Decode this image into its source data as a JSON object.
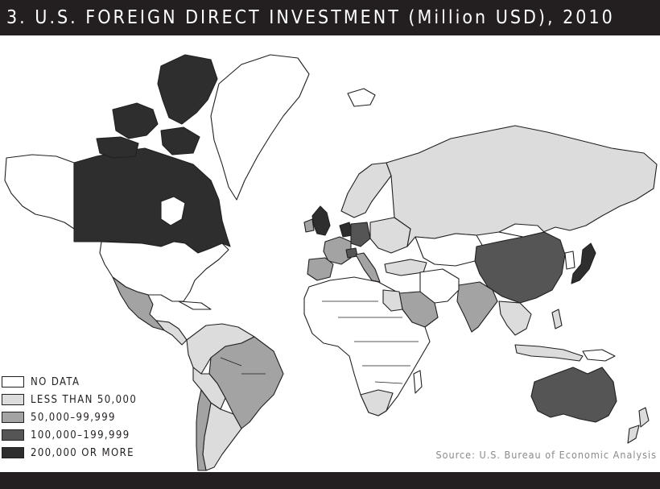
{
  "title": "3. U.S. FOREIGN DIRECT INVESTMENT (Million USD), 2010",
  "source": "Source: U.S. Bureau of Economic Analysis",
  "legend": [
    {
      "label": "NO DATA",
      "color": "#ffffff",
      "class": "no_data"
    },
    {
      "label": "LESS THAN 50,000",
      "color": "#dcdcdc",
      "class": "lt_50k"
    },
    {
      "label": "50,000–99,999",
      "color": "#a3a3a3",
      "class": "50k_100k"
    },
    {
      "label": "100,000–199,999",
      "color": "#555555",
      "class": "100k_200k"
    },
    {
      "label": "200,000 OR MORE",
      "color": "#2e2e2e",
      "class": "ge_200k"
    }
  ],
  "map_data": {
    "classification": {
      "ge_200k": [
        "Canada",
        "United Kingdom",
        "Netherlands"
      ],
      "100k_200k": [
        "China",
        "Japan",
        "Australia",
        "Germany",
        "Switzerland",
        "Belgium"
      ],
      "50k_100k": [
        "Mexico",
        "Brazil",
        "Spain",
        "France",
        "Italy",
        "India",
        "Saudi Arabia",
        "Chile"
      ],
      "lt_50k": [
        "Russia",
        "Argentina",
        "South America (other)",
        "Scandinavia",
        "Turkey",
        "Egypt",
        "South Africa",
        "Southeast Asia",
        "New Zealand",
        "Central America"
      ],
      "no_data": [
        "United States",
        "Alaska",
        "Greenland",
        "Africa (most)",
        "Central Asia",
        "Middle East (other)"
      ]
    }
  }
}
